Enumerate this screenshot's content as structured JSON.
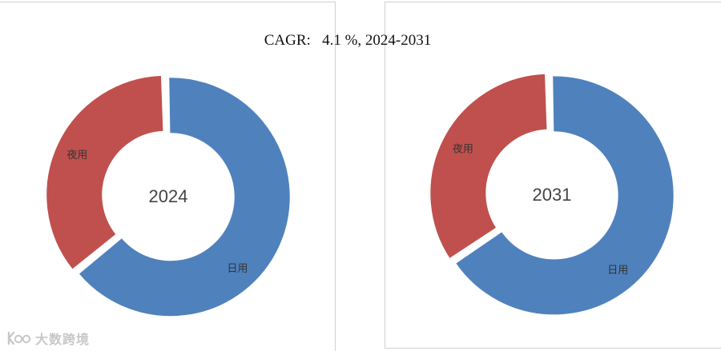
{
  "chart_data": {
    "title": "CAGR:   4.1 %, 2024-2031",
    "charts": [
      {
        "type": "pie",
        "center_label": "2024",
        "slices": [
          {
            "label": "日用",
            "value": 64.5,
            "color": "#4f81bd"
          },
          {
            "label": "夜用",
            "value": 35.5,
            "color": "#c0504d"
          }
        ]
      },
      {
        "type": "pie",
        "center_label": "2031",
        "slices": [
          {
            "label": "日用",
            "value": 66.0,
            "color": "#4f81bd"
          },
          {
            "label": "夜用",
            "value": 34.0,
            "color": "#c0504d"
          }
        ]
      }
    ]
  },
  "watermark": {
    "text": "大数跨境",
    "logo": "kbb-logo"
  }
}
